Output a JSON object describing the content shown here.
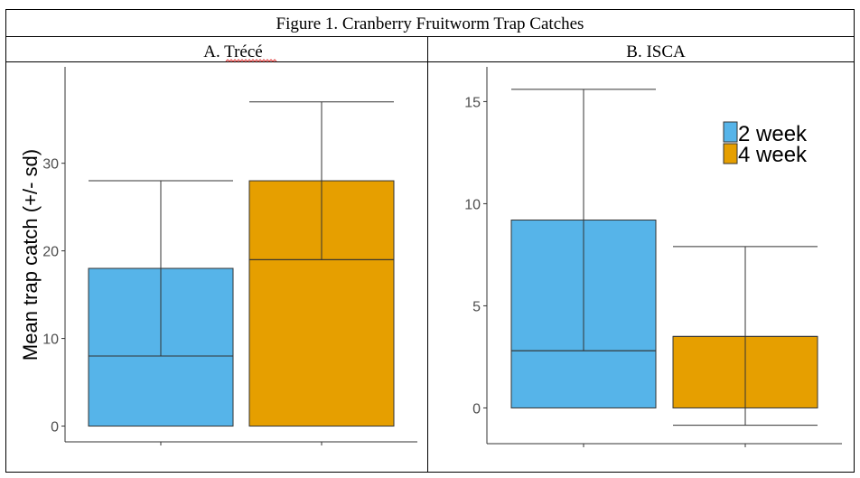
{
  "figure_title": "Figure 1. Cranberry Fruitworm Trap Catches",
  "colors": {
    "2 week": "#56b4e9",
    "4 week": "#e69f00",
    "line": "#333333",
    "axis": "#333333"
  },
  "chart_data": [
    {
      "type": "bar",
      "panel_title": "A.  Trécé",
      "ylabel": "Mean trap catch (+/- sd)",
      "xlabel": "",
      "ylim": [
        -1.8,
        41
      ],
      "yticks": [
        0,
        10,
        20,
        30
      ],
      "grid": false,
      "legend": "none",
      "series": [
        {
          "name": "2 week",
          "mean": 18,
          "sd_low": 8,
          "sd_high": 28,
          "median": 8
        },
        {
          "name": "4 week",
          "mean": 28,
          "sd_low": 19,
          "sd_high": 37,
          "median": 19
        }
      ]
    },
    {
      "type": "bar",
      "panel_title": "B.  ISCA",
      "ylabel": "",
      "xlabel": "",
      "ylim": [
        -1.75,
        16.7
      ],
      "yticks": [
        0,
        5,
        10,
        15
      ],
      "grid": false,
      "legend": "top-right",
      "series": [
        {
          "name": "2 week",
          "mean": 9.2,
          "sd_low": 2.8,
          "sd_high": 15.6,
          "median": 2.8
        },
        {
          "name": "4 week",
          "mean": 3.5,
          "sd_low": -0.85,
          "sd_high": 7.9,
          "median": 3.5
        }
      ]
    }
  ]
}
